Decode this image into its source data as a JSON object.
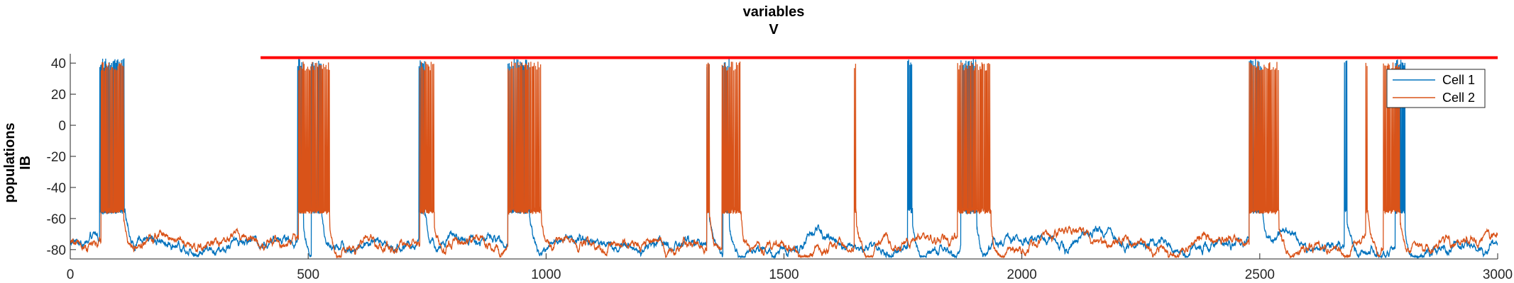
{
  "chart_data": {
    "type": "line",
    "title_lines": [
      "variables",
      "V"
    ],
    "ylabel_lines": [
      "populations",
      "IB"
    ],
    "xlabel": "",
    "xlim": [
      0,
      3000
    ],
    "ylim": [
      -86,
      46
    ],
    "xticks": [
      0,
      500,
      1000,
      1500,
      2000,
      2500,
      3000
    ],
    "yticks": [
      -80,
      -60,
      -40,
      -20,
      0,
      20,
      40
    ],
    "grid": false,
    "legend_position": "top-right",
    "threshold_line": {
      "y": 43.5,
      "x_range": [
        400,
        3000
      ],
      "color": "#ff0000"
    },
    "series": [
      {
        "name": "Cell 1",
        "color": "#0072bd",
        "resting_mean": -75,
        "spike_peak": 43,
        "plateau": -55,
        "bursts": [
          [
            62,
            115
          ],
          [
            478,
            490
          ],
          [
            507,
            528
          ],
          [
            733,
            745
          ],
          [
            920,
            965
          ],
          [
            1338,
            1343
          ],
          [
            1372,
            1385
          ],
          [
            1760,
            1770
          ],
          [
            1872,
            1905
          ],
          [
            2478,
            2505
          ],
          [
            2678,
            2683
          ],
          [
            2785,
            2805
          ]
        ]
      },
      {
        "name": "Cell 2",
        "color": "#d95319",
        "resting_mean": -76,
        "spike_peak": 41,
        "plateau": -55,
        "bursts": [
          [
            65,
            112
          ],
          [
            480,
            545
          ],
          [
            735,
            765
          ],
          [
            920,
            990
          ],
          [
            1338,
            1343
          ],
          [
            1370,
            1410
          ],
          [
            1648,
            1652
          ],
          [
            1865,
            1935
          ],
          [
            2478,
            2540
          ],
          [
            2723,
            2727
          ],
          [
            2760,
            2795
          ]
        ]
      }
    ]
  }
}
